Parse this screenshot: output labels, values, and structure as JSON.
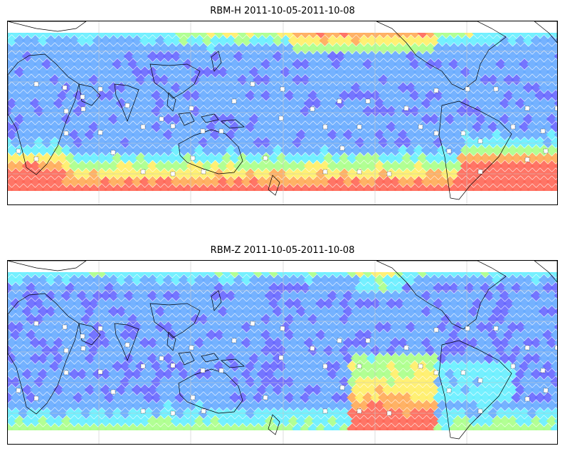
{
  "panels": [
    {
      "title": "RBM-H 2011-10-05-2011-10-08",
      "field": "h"
    },
    {
      "title": "RBM-Z 2011-10-05-2011-10-08",
      "field": "z"
    }
  ],
  "colormap": [
    "#6666ff",
    "#66aaff",
    "#66eeff",
    "#aaff88",
    "#ffee66",
    "#ffaa55",
    "#ff6655"
  ],
  "gridlines": true,
  "coastline_color": "#000000"
}
